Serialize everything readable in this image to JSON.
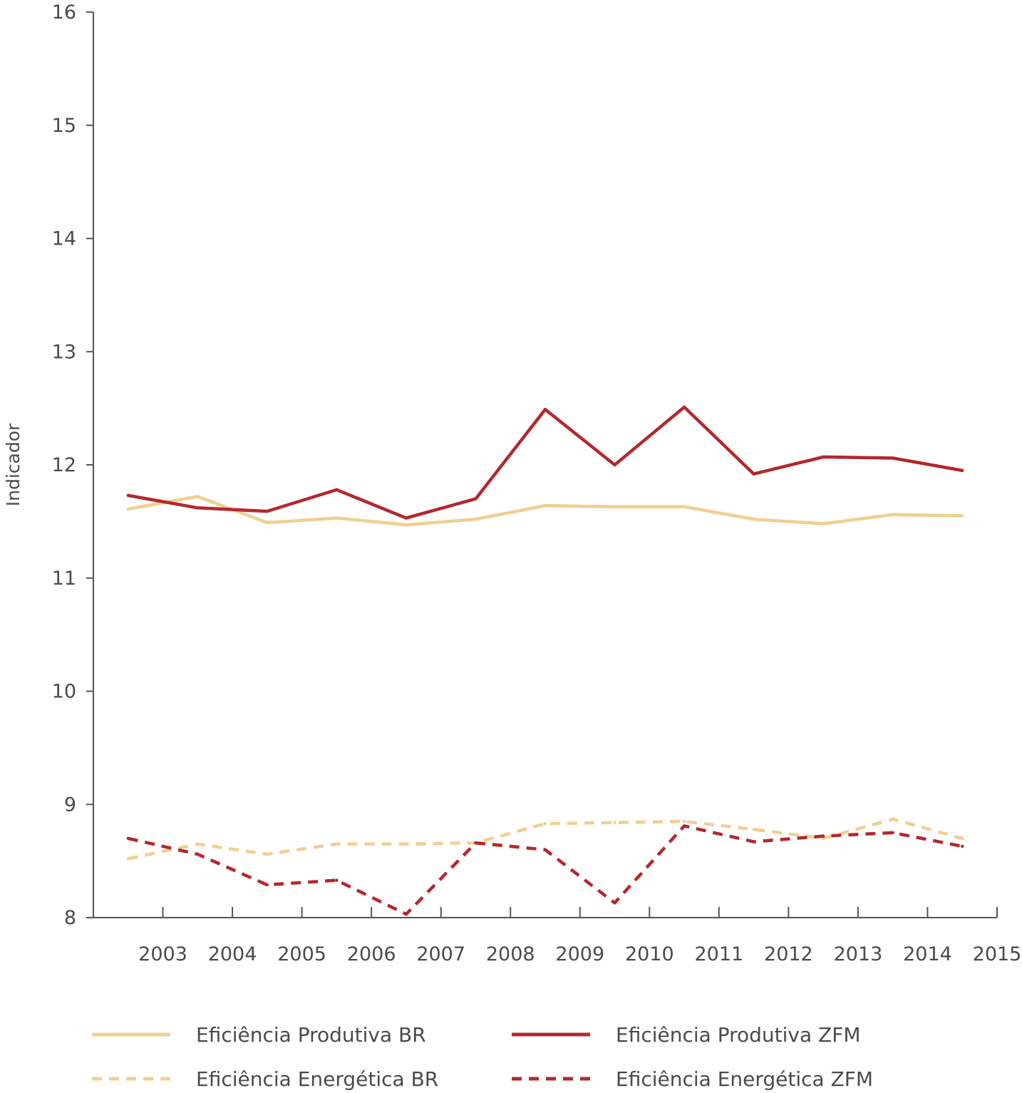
{
  "chart_data": {
    "type": "line",
    "title": "",
    "xlabel": "",
    "ylabel": "Indicador",
    "x_ticks": [
      "2003",
      "2004",
      "2005",
      "2006",
      "2007",
      "2008",
      "2009",
      "2010",
      "2011",
      "2012",
      "2013",
      "2014",
      "2015"
    ],
    "x": [
      2002.5,
      2003.5,
      2004.5,
      2005.5,
      2006.5,
      2007.5,
      2008.5,
      2009.5,
      2010.5,
      2011.5,
      2012.5,
      2013.5,
      2014.5
    ],
    "xlim": [
      2002.0,
      2015.0
    ],
    "y_ticks": [
      8,
      9,
      10,
      11,
      12,
      13,
      14,
      15,
      16
    ],
    "ylim": [
      8,
      16
    ],
    "grid": false,
    "legend_position": "bottom",
    "series": [
      {
        "name": "Eficiência Produtiva BR",
        "color": "#f0cf91",
        "dash": "solid",
        "values": [
          11.61,
          11.72,
          11.49,
          11.53,
          11.47,
          11.52,
          11.64,
          11.63,
          11.63,
          11.52,
          11.48,
          11.56,
          11.55
        ]
      },
      {
        "name": "Eficiência Produtiva ZFM",
        "color": "#b3282d",
        "dash": "solid",
        "values": [
          11.73,
          11.62,
          11.59,
          11.78,
          11.53,
          11.7,
          12.49,
          12.0,
          12.51,
          11.92,
          12.07,
          12.06,
          11.95
        ]
      },
      {
        "name": "Eficiência Energética BR",
        "color": "#f0cf91",
        "dash": "dashed",
        "values": [
          8.52,
          8.65,
          8.56,
          8.65,
          8.65,
          8.66,
          8.83,
          8.84,
          8.85,
          8.78,
          8.7,
          8.87,
          8.7
        ]
      },
      {
        "name": "Eficiência Energética ZFM",
        "color": "#b3282d",
        "dash": "dashed",
        "values": [
          8.7,
          8.56,
          8.29,
          8.33,
          8.03,
          8.66,
          8.6,
          8.13,
          8.81,
          8.67,
          8.72,
          8.75,
          8.63
        ]
      }
    ]
  }
}
